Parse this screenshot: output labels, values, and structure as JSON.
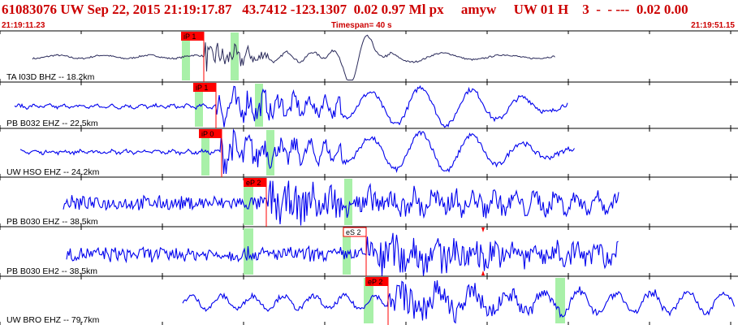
{
  "header": {
    "title": "61083076 UW Sep 22, 2015 21:19:17.87   43.7412 -123.1307  0.02 0.97 Ml px     amyw     UW 01 H    3  -  - ---  0.02 0.00",
    "start_time": "21:19:11.23",
    "timespan": "Timespan=  40 s",
    "end_time": "21:19:51.15"
  },
  "colors": {
    "header_red": "#cc0000",
    "trace_blue": "#0000ee",
    "trace_first": "#2a2a5a",
    "window_green": "#a8f0a8",
    "pick_red": "#ff0000"
  },
  "channels": [
    {
      "label": "TA I03D BHZ -- 18.2km",
      "pick": "iP 1",
      "pick_style": "filled"
    },
    {
      "label": "PB B032 EHZ -- 22.5km",
      "pick": "iP 1",
      "pick_style": "filled"
    },
    {
      "label": "UW HSO EHZ -- 24.2km",
      "pick": "iP 0",
      "pick_style": "filled"
    },
    {
      "label": "PB B030 EHZ -- 38.5km",
      "pick": "eP 2",
      "pick_style": "filled"
    },
    {
      "label": "PB B030 EH2 -- 38.5km",
      "pick": "eS 2",
      "pick_style": "outline"
    },
    {
      "label": "UW BRO EHZ -- 79.7km",
      "pick": "eP 2",
      "pick_style": "filled"
    }
  ]
}
